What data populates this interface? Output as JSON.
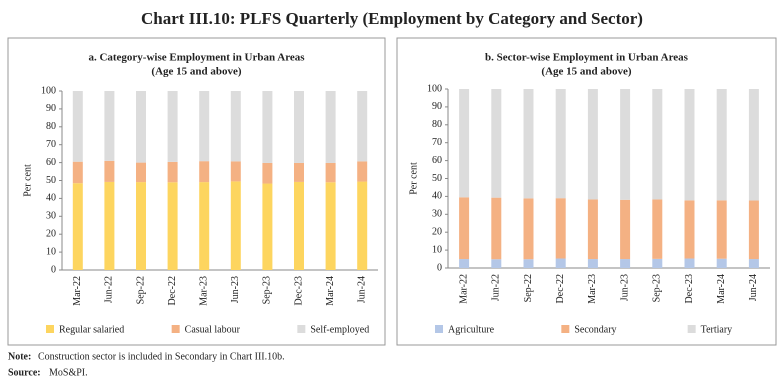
{
  "title": "Chart III.10: PLFS Quarterly (Employment by Category and Sector)",
  "note_label": "Note:",
  "note": "Construction sector is included in Secondary in Chart III.10b.",
  "source_label": "Source:",
  "source": "MoS&PI.",
  "chart_data": [
    {
      "type": "bar",
      "stacked": true,
      "title": "a. Category-wise Employment in Urban Areas",
      "subtitle": "(Age 15 and above)",
      "y_label": "Per cent",
      "categories": [
        "Mar-22",
        "Jun-22",
        "Sep-22",
        "Dec-22",
        "Mar-23",
        "Jun-23",
        "Sep-23",
        "Dec-23",
        "Mar-24",
        "Jun-24"
      ],
      "series": [
        {
          "name": "Regular salaried",
          "color": "#fdd55f",
          "values": [
            48.5,
            49.2,
            49.1,
            49.0,
            49.1,
            49.5,
            48.3,
            49.2,
            49.0,
            49.4
          ]
        },
        {
          "name": "Casual labour",
          "color": "#f4b183",
          "values": [
            12.0,
            11.8,
            10.9,
            11.4,
            11.7,
            11.2,
            11.5,
            10.6,
            10.8,
            11.3
          ]
        },
        {
          "name": "Self-employed",
          "color": "#dcdcdc",
          "values": [
            39.5,
            39.0,
            40.0,
            39.6,
            39.2,
            39.3,
            40.2,
            40.2,
            40.2,
            39.3
          ]
        }
      ],
      "ylim": [
        0,
        100
      ],
      "yticks": [
        0,
        10,
        20,
        30,
        40,
        50,
        60,
        70,
        80,
        90,
        100
      ]
    },
    {
      "type": "bar",
      "stacked": true,
      "title": "b. Sector-wise Employment in Urban Areas",
      "subtitle": "(Age 15 and above)",
      "y_label": "Per cent",
      "categories": [
        "Mar-22",
        "Jun-22",
        "Sep-22",
        "Dec-22",
        "Mar-23",
        "Jun-23",
        "Sep-23",
        "Dec-23",
        "Mar-24",
        "Jun-24"
      ],
      "series": [
        {
          "name": "Agriculture",
          "color": "#b4c7e7",
          "values": [
            5.0,
            4.9,
            4.9,
            5.3,
            5.0,
            5.0,
            5.1,
            5.3,
            5.2,
            5.0
          ]
        },
        {
          "name": "Secondary",
          "color": "#f4b183",
          "values": [
            34.5,
            34.4,
            34.0,
            33.7,
            33.3,
            33.1,
            33.2,
            32.5,
            32.6,
            32.7
          ]
        },
        {
          "name": "Tertiary",
          "color": "#dcdcdc",
          "values": [
            60.5,
            60.7,
            61.1,
            61.0,
            61.7,
            61.9,
            61.7,
            62.2,
            62.2,
            62.3
          ]
        }
      ],
      "ylim": [
        0,
        100
      ],
      "yticks": [
        0,
        10,
        20,
        30,
        40,
        50,
        60,
        70,
        80,
        90,
        100
      ]
    }
  ]
}
